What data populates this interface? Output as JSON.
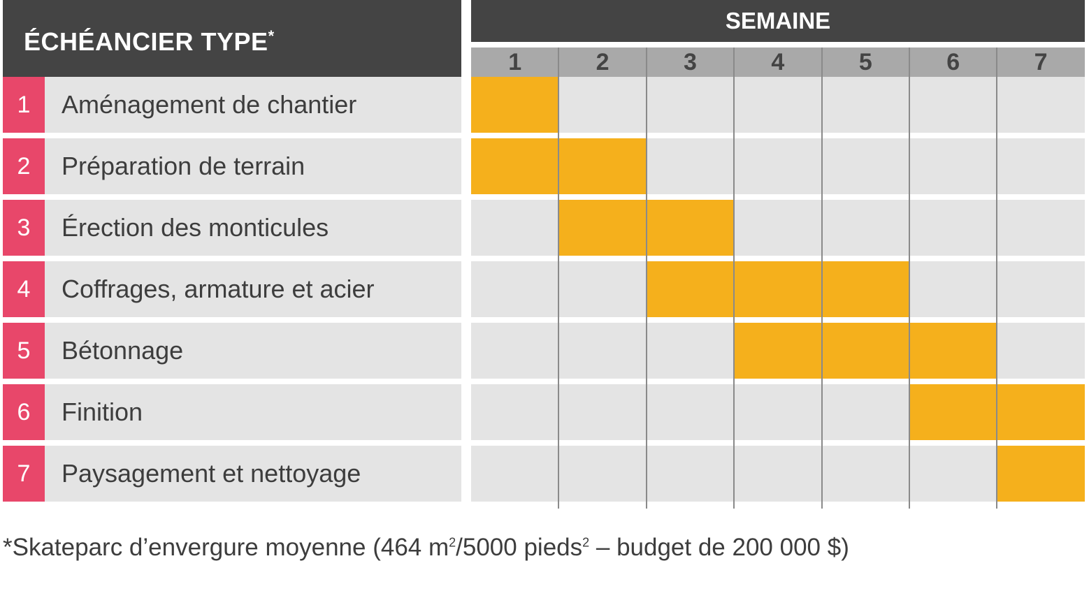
{
  "title_main": "ÉCHÉANCIER TYPE",
  "title_mark": "*",
  "week_header": "SEMAINE",
  "footnote": {
    "part1": "*Skateparc d’envergure moyenne (464 m",
    "sup1": "2",
    "part2": "/5000 pieds",
    "sup2": "2",
    "part3": " – budget de 200 000 $)"
  },
  "colors": {
    "header_bg": "#444444",
    "week_row_bg": "#a9a9a9",
    "number_badge": "#e8476a",
    "row_bg": "#e4e4e4",
    "bar": "#f5b01c"
  },
  "chart_data": {
    "type": "gantt",
    "weeks": [
      "1",
      "2",
      "3",
      "4",
      "5",
      "6",
      "7"
    ],
    "tasks": [
      {
        "num": "1",
        "label": "Aménagement de chantier",
        "start_week": 1,
        "end_week": 1
      },
      {
        "num": "2",
        "label": "Préparation de terrain",
        "start_week": 1,
        "end_week": 2
      },
      {
        "num": "3",
        "label": "Érection des monticules",
        "start_week": 2,
        "end_week": 3
      },
      {
        "num": "4",
        "label": "Coffrages, armature et acier",
        "start_week": 3,
        "end_week": 5
      },
      {
        "num": "5",
        "label": "Bétonnage",
        "start_week": 4,
        "end_week": 6
      },
      {
        "num": "6",
        "label": "Finition",
        "start_week": 6,
        "end_week": 7
      },
      {
        "num": "7",
        "label": "Paysagement et nettoyage",
        "start_week": 7,
        "end_week": 7
      }
    ]
  }
}
